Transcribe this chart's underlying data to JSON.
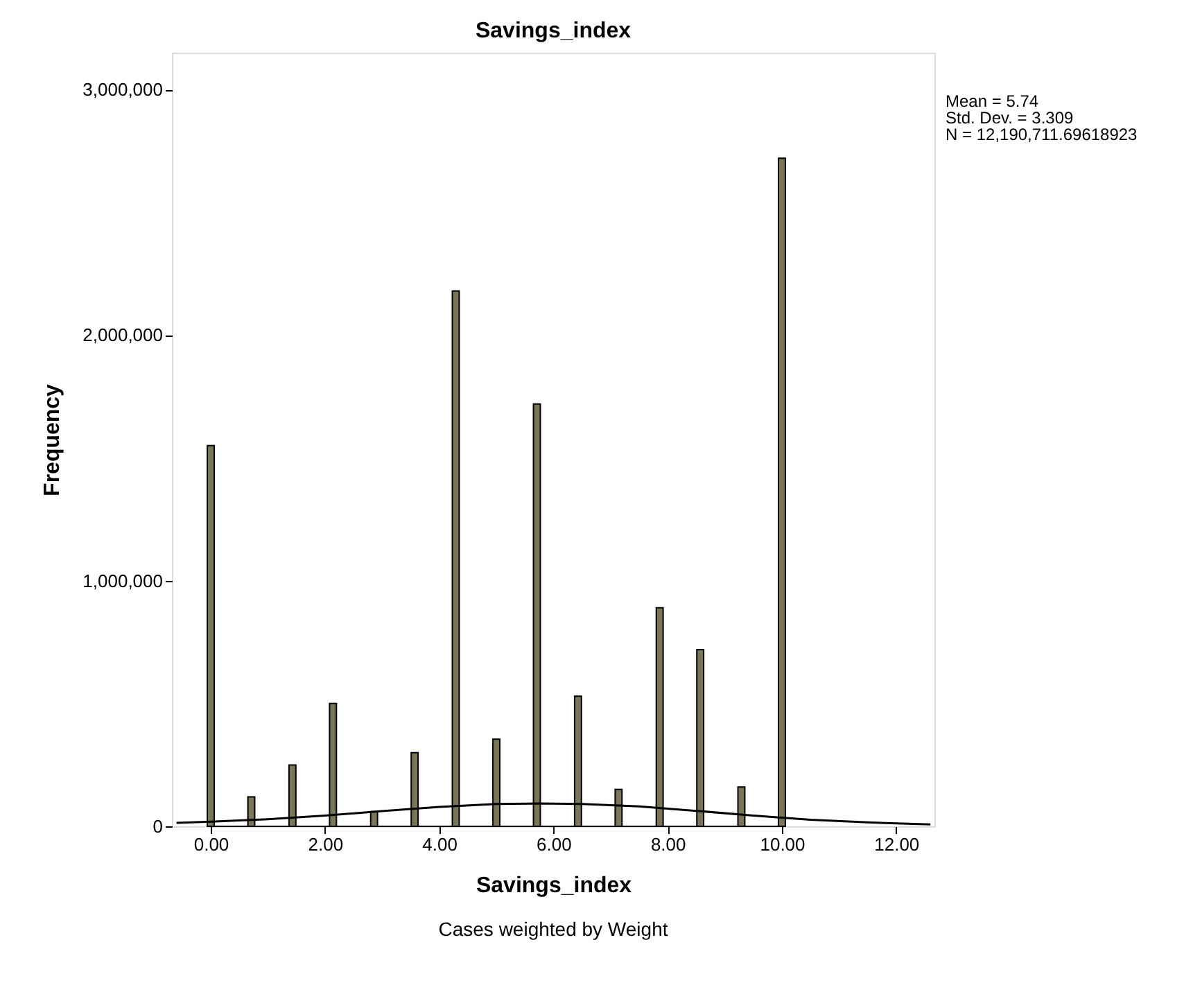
{
  "chart_data": {
    "type": "histogram",
    "title": "Savings_index",
    "xlabel": "Savings_index",
    "ylabel": "Frequency",
    "bins": [
      -0.06,
      0.06,
      0.65,
      0.77,
      1.37,
      1.49,
      2.08,
      2.2,
      2.8,
      2.92,
      3.51,
      3.63,
      4.23,
      4.35,
      4.94,
      5.06,
      5.65,
      5.77,
      6.37,
      6.49,
      7.08,
      7.2,
      7.8,
      7.92,
      8.51,
      8.63,
      9.23,
      9.35,
      9.94,
      10.06
    ],
    "series": [
      {
        "color": "#7a7658",
        "values": [
          1550000,
          0,
          120000,
          0,
          250000,
          0,
          500000,
          0,
          60000,
          0,
          300000,
          0,
          2180000,
          0,
          355000,
          0,
          1720000,
          0,
          530000,
          0,
          150000,
          0,
          890000,
          0,
          720000,
          0,
          160000,
          0,
          2720000
        ]
      },
      {
        "type": "line",
        "color": "#000000",
        "x": [
          -0.6,
          0,
          1,
          2,
          3,
          4,
          5,
          5.74,
          6.5,
          7.5,
          8.5,
          9.5,
          10.5,
          11.5,
          12.6
        ],
        "values": [
          14000,
          19000,
          29000,
          44000,
          62000,
          79000,
          91000,
          93000,
          91000,
          81000,
          63000,
          44000,
          27000,
          16000,
          8000
        ]
      }
    ],
    "xlim": [
      -0.68,
      12.67
    ],
    "ylim": [
      0,
      3150000
    ],
    "xticks": [
      {
        "value": 0,
        "label": "0.00"
      },
      {
        "value": 2,
        "label": "2.00"
      },
      {
        "value": 4,
        "label": "4.00"
      },
      {
        "value": 6,
        "label": "6.00"
      },
      {
        "value": 8,
        "label": "8.00"
      },
      {
        "value": 10,
        "label": "10.00"
      },
      {
        "value": 12,
        "label": "12.00"
      }
    ],
    "yticks": [
      0,
      {
        "value": 1000000,
        "label": "1,000,000"
      },
      {
        "value": 2000000,
        "label": "2,000,000"
      },
      {
        "value": 3000000,
        "label": "3,000,000"
      }
    ],
    "grid": false,
    "annotations": [
      "Mean = 5.74",
      "Std. Dev. = 3.309",
      "N = 12,190,711.69618923",
      "Cases weighted by Weight"
    ]
  }
}
